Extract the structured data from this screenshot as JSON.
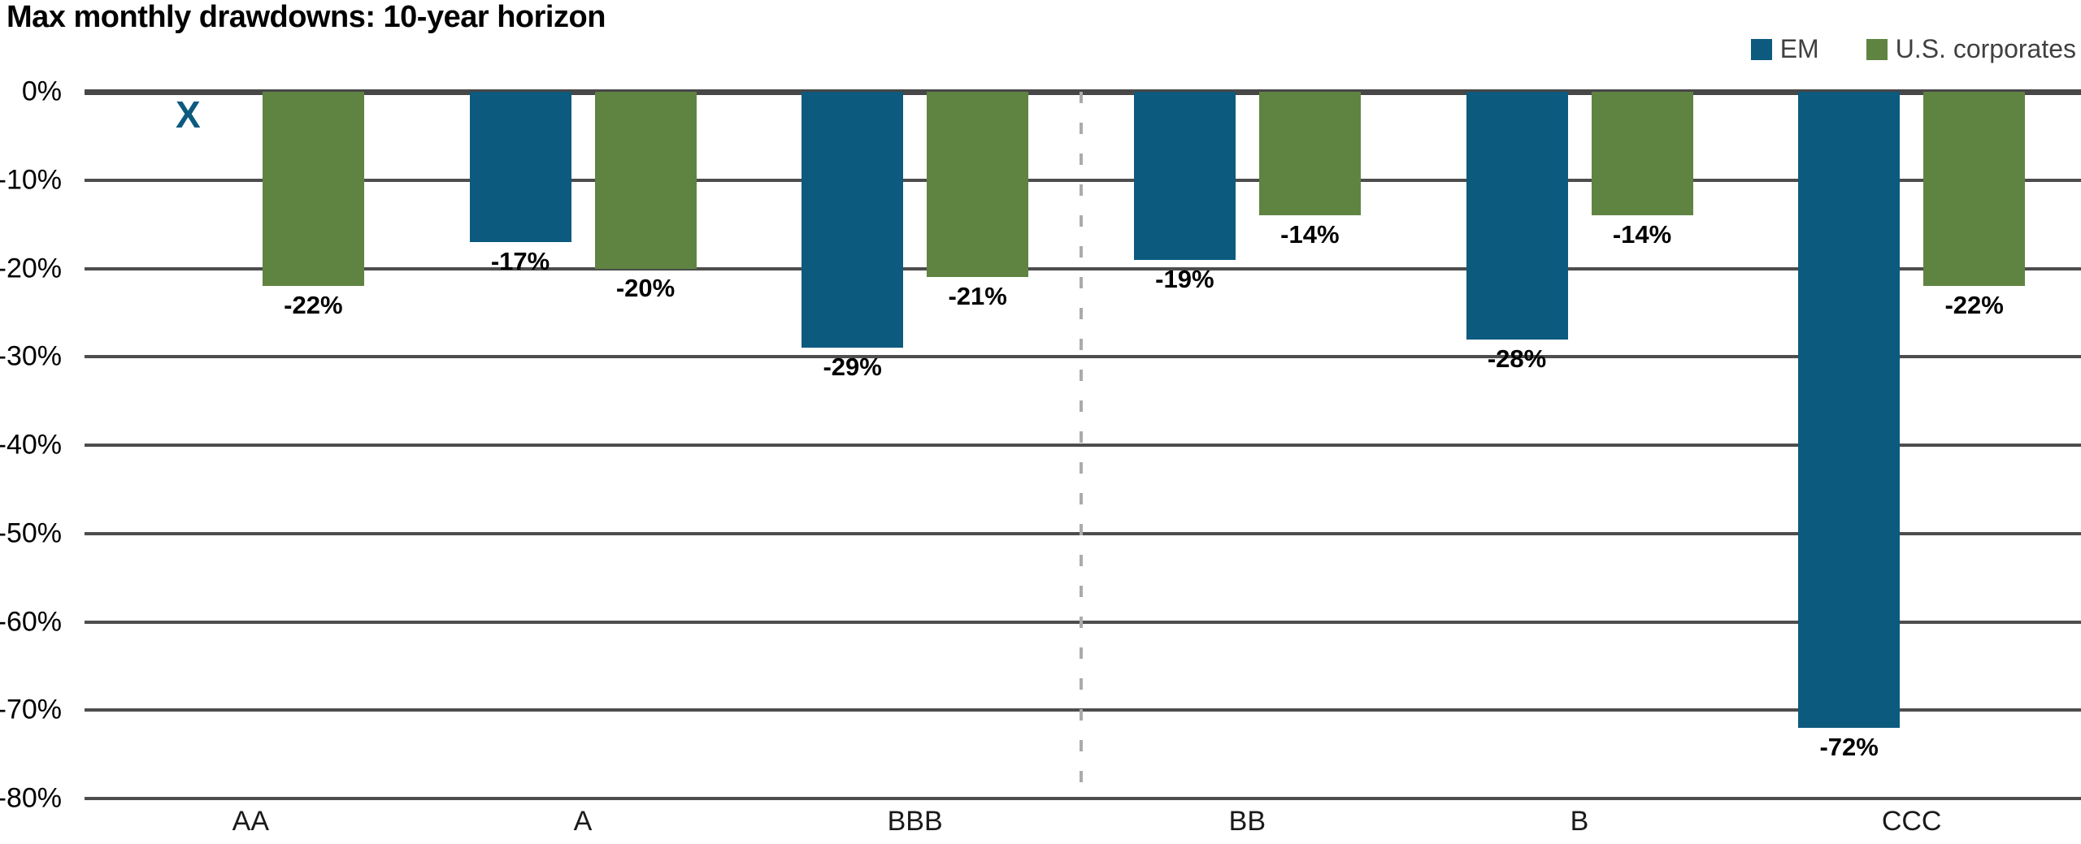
{
  "title": "Max monthly drawdowns: 10-year horizon",
  "legend": {
    "items": [
      {
        "label": "EM",
        "color": "#0d5a7f"
      },
      {
        "label": "U.S. corporates",
        "color": "#5f8441"
      }
    ]
  },
  "colors": {
    "em_blue": "#0d5a7f",
    "us_corporates_green": "#5f8441",
    "gridline": "#4d4d4d",
    "zero_line": "#474747",
    "divider_dash": "#ababab",
    "legend_text": "#404040",
    "label_text": "#000000",
    "background": "#ffffff"
  },
  "chart_data": {
    "type": "bar",
    "title": "Max monthly drawdowns: 10-year horizon",
    "categories": [
      "AA",
      "A",
      "BBB",
      "BB",
      "B",
      "CCC"
    ],
    "series": [
      {
        "name": "EM",
        "color": "#0d5a7f",
        "values": [
          null,
          -17,
          -29,
          -19,
          -28,
          -72
        ],
        "labels": [
          "",
          "-17%",
          "-29%",
          "-19%",
          "-28%",
          "-72%"
        ]
      },
      {
        "name": "U.S. corporates",
        "color": "#5f8441",
        "values": [
          -22,
          -20,
          -21,
          -14,
          -14,
          -22
        ],
        "labels": [
          "-22%",
          "-20%",
          "-21%",
          "-14%",
          "-14%",
          "-22%"
        ]
      }
    ],
    "missing_marker": {
      "category": "AA",
      "series": "EM",
      "symbol": "X",
      "color": "#0d5a7f"
    },
    "yticks": [
      "0%",
      "-10%",
      "-20%",
      "-30%",
      "-40%",
      "-50%",
      "-60%",
      "-70%",
      "-80%"
    ],
    "ylim": [
      0,
      -80
    ],
    "xlabel": "",
    "ylabel": "",
    "grid": true,
    "legend_position": "top-right",
    "divider_after_category": "BBB"
  }
}
